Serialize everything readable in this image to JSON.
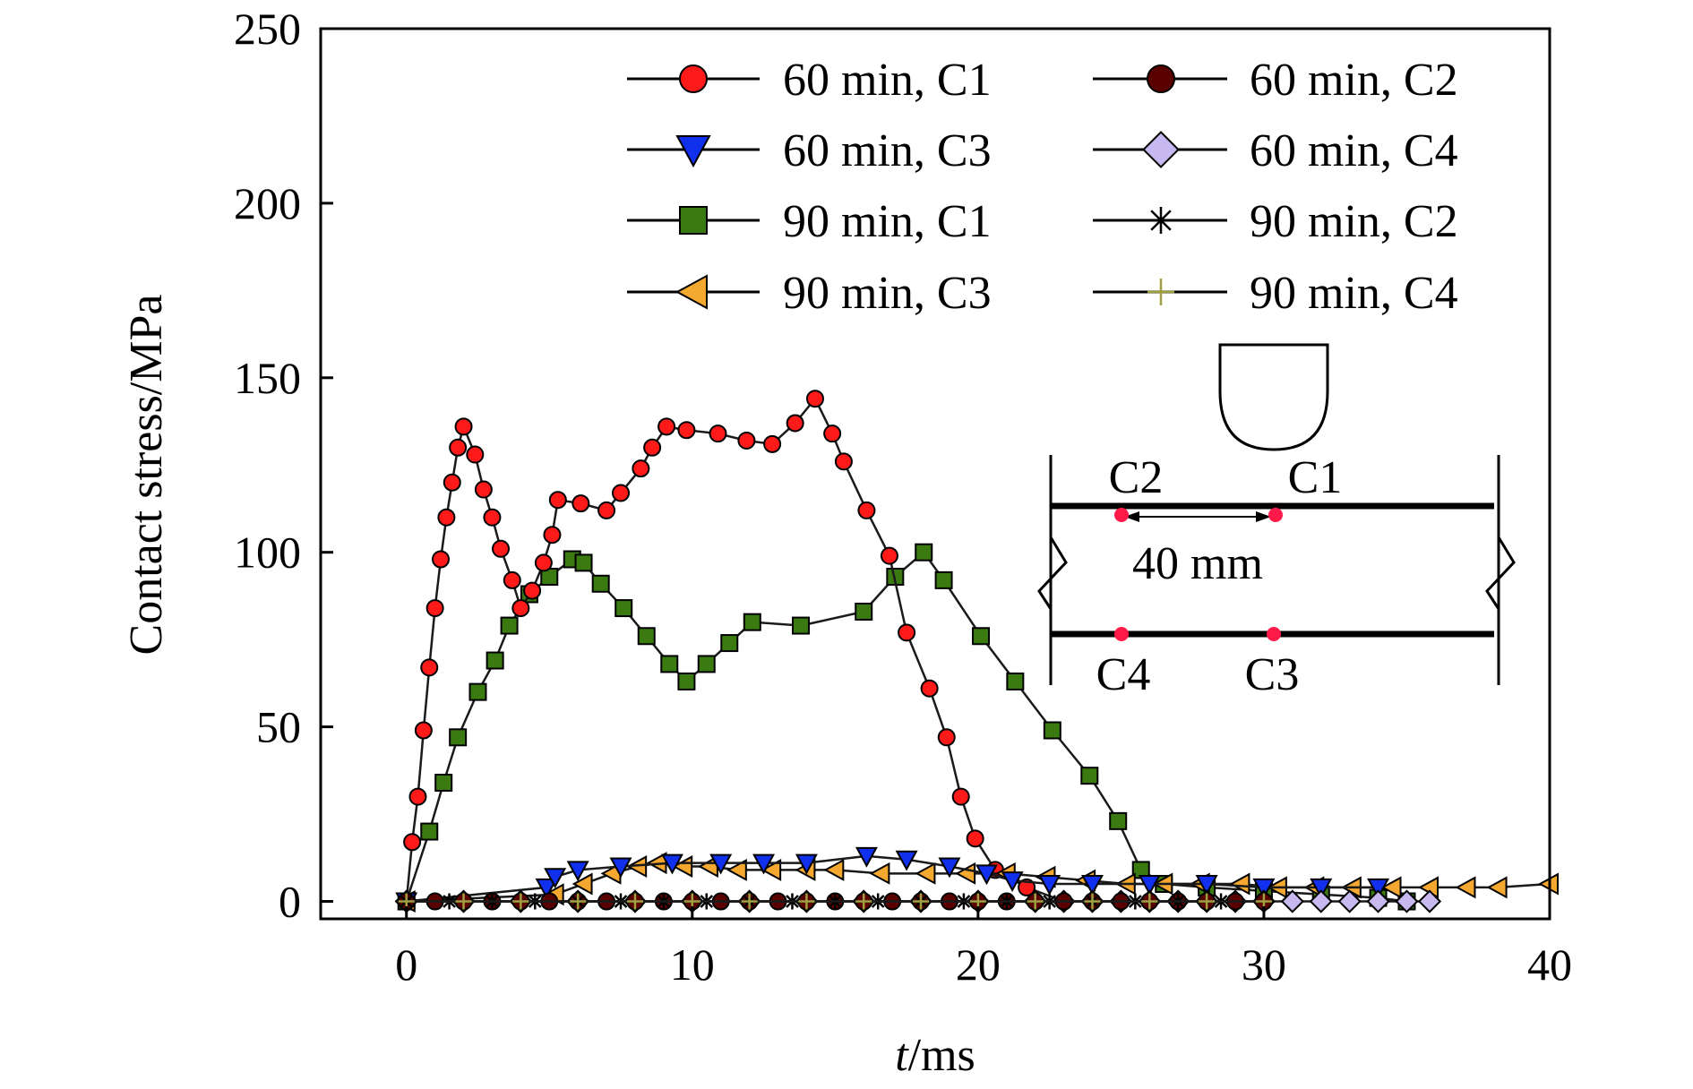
{
  "chart_data": {
    "type": "line",
    "xlabel_italic": "t",
    "xlabel_unit": "/ms",
    "ylabel": "Contact stress/MPa",
    "xlim": [
      -3,
      40
    ],
    "ylim": [
      -5,
      250
    ],
    "xticks": [
      0,
      10,
      20,
      30,
      40
    ],
    "yticks": [
      0,
      50,
      100,
      150,
      200,
      250
    ],
    "grid": false,
    "legend_placement": "top-right, 2 columns",
    "series": [
      {
        "name": "60 min, C1",
        "marker": "circle",
        "color": "#ff1a1a",
        "x": [
          0,
          0.2,
          0.4,
          0.6,
          0.8,
          1.0,
          1.2,
          1.4,
          1.6,
          1.8,
          2.0,
          2.4,
          2.7,
          3.0,
          3.3,
          3.7,
          4.0,
          4.4,
          4.8,
          5.1,
          5.3,
          6.1,
          7.0,
          7.5,
          8.2,
          8.6,
          9.1,
          9.8,
          10.9,
          11.9,
          12.8,
          13.6,
          14.3,
          14.9,
          15.3,
          16.1,
          16.9,
          17.5,
          18.3,
          18.9,
          19.4,
          19.9,
          20.6,
          21.7,
          23.0
        ],
        "y": [
          0,
          17,
          30,
          49,
          67,
          84,
          98,
          110,
          120,
          130,
          136,
          128,
          118,
          110,
          101,
          92,
          84,
          89,
          97,
          105,
          115,
          114,
          112,
          117,
          124,
          130,
          136,
          135,
          134,
          132,
          131,
          137,
          144,
          134,
          126,
          112,
          99,
          77,
          61,
          47,
          30,
          18,
          9,
          4,
          0
        ]
      },
      {
        "name": "60 min, C2",
        "marker": "circle",
        "color": "#5a0000",
        "x": [
          0,
          1,
          2,
          3,
          4,
          5,
          6,
          7,
          8,
          9,
          10,
          11,
          12,
          13,
          14,
          15,
          16,
          17,
          18,
          19,
          20,
          21,
          22,
          23,
          24,
          25,
          26,
          27,
          28,
          29,
          30
        ],
        "y": [
          0,
          0,
          0,
          0,
          0,
          0,
          0,
          0,
          0,
          0,
          0,
          0,
          0,
          0,
          0,
          0,
          0,
          0,
          0,
          0,
          0,
          0,
          0,
          0,
          0,
          0,
          0,
          0,
          0,
          0,
          0
        ]
      },
      {
        "name": "60 min, C3",
        "marker": "triangle-down",
        "color": "#1030ee",
        "x": [
          0,
          4.9,
          5.2,
          6.0,
          7.5,
          9.3,
          11.0,
          12.5,
          14.0,
          16.1,
          17.5,
          19.0,
          20.3,
          21.2,
          22.5,
          24.0,
          26.0,
          28.0,
          30.0,
          32.0,
          34.0
        ],
        "y": [
          0,
          4,
          7,
          9,
          10,
          11,
          11,
          11,
          11,
          13,
          12,
          10,
          8,
          6,
          5,
          5,
          5,
          5,
          4,
          4,
          4
        ]
      },
      {
        "name": "60 min, C4",
        "marker": "diamond",
        "color": "#c8b8f0",
        "x": [
          0,
          2,
          4,
          6,
          8,
          10,
          12,
          14,
          16,
          18,
          20,
          22,
          23,
          24,
          25,
          26,
          27,
          28,
          29,
          30,
          31,
          32,
          33,
          34,
          35,
          35.8
        ],
        "y": [
          0,
          0,
          0,
          0,
          0,
          0,
          0,
          0,
          0,
          0,
          0,
          0,
          0,
          0,
          0,
          0,
          0,
          0,
          0,
          0,
          0,
          0,
          0,
          0,
          0,
          0
        ]
      },
      {
        "name": "90 min, C1",
        "marker": "square",
        "color": "#3a7a10",
        "x": [
          0,
          0.8,
          1.3,
          1.8,
          2.5,
          3.1,
          3.6,
          4.3,
          5.0,
          5.8,
          6.2,
          6.8,
          7.6,
          8.4,
          9.2,
          9.8,
          10.5,
          11.3,
          12.1,
          13.8,
          16.0,
          17.1,
          18.1,
          18.8,
          20.1,
          21.3,
          22.6,
          23.9,
          24.9,
          25.7,
          26.5,
          28.0,
          30.0,
          32.0,
          34.0,
          35.0
        ],
        "y": [
          0,
          20,
          34,
          47,
          60,
          69,
          79,
          88,
          93,
          98,
          97,
          91,
          84,
          76,
          68,
          63,
          68,
          74,
          80,
          79,
          83,
          93,
          100,
          92,
          76,
          63,
          49,
          36,
          23,
          9,
          5,
          4,
          3,
          2,
          1,
          0
        ]
      },
      {
        "name": "90 min, C2",
        "marker": "star",
        "color": "#000000",
        "x": [
          0,
          1.5,
          3,
          4.5,
          6,
          7.5,
          9,
          10.5,
          12,
          13.5,
          15,
          16.5,
          18,
          19.5,
          21,
          22.5,
          24,
          25.5,
          27,
          28.5
        ],
        "y": [
          0,
          0,
          0,
          0,
          0,
          0,
          0,
          0,
          0,
          0,
          0,
          0,
          0,
          0,
          0,
          0,
          0,
          0,
          0,
          0
        ]
      },
      {
        "name": "90 min, C3",
        "marker": "triangle-left",
        "color": "#f4a830",
        "x": [
          0,
          5.2,
          6.2,
          7.2,
          8.1,
          8.8,
          9.7,
          10.6,
          11.6,
          12.8,
          14.0,
          15.0,
          16.6,
          18.2,
          19.6,
          21.0,
          22.4,
          23.8,
          25.2,
          26.5,
          27.8,
          29.2,
          30.5,
          31.8,
          33.1,
          34.5,
          35.8,
          37.1,
          38.2,
          40.0
        ],
        "y": [
          0,
          2,
          5,
          8,
          10,
          11,
          10,
          10,
          9,
          9,
          9,
          9,
          8,
          8,
          8,
          8,
          7,
          6,
          5,
          5,
          5,
          5,
          4,
          4,
          4,
          4,
          4,
          4,
          4,
          5
        ]
      },
      {
        "name": "90 min, C4",
        "marker": "plus",
        "color": "#a0a040",
        "x": [
          0,
          2,
          4,
          6,
          8,
          10,
          12,
          14,
          16,
          18,
          20,
          22,
          24,
          26,
          28,
          30
        ],
        "y": [
          0,
          0,
          0,
          0,
          0,
          0,
          0,
          0,
          0,
          0,
          0,
          0,
          0,
          0,
          0,
          0
        ]
      }
    ],
    "inset": {
      "labels": {
        "c1": "C1",
        "c2": "C2",
        "c3": "C3",
        "c4": "C4"
      },
      "spacing_label": "40 mm",
      "gauge_color": "#ff1a4a"
    }
  }
}
